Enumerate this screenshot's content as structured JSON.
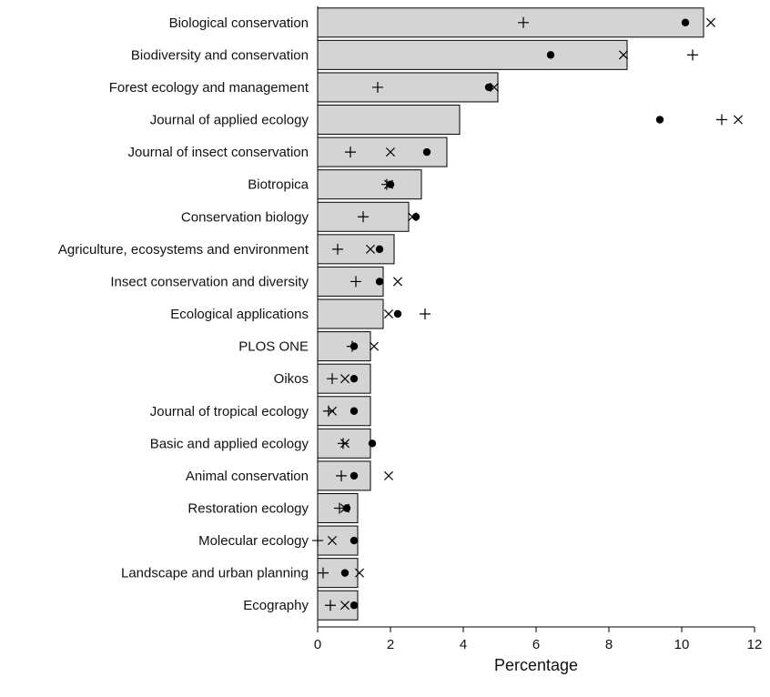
{
  "chart_data": {
    "type": "bar",
    "orientation": "horizontal",
    "xlabel": "Percentage",
    "xlim": [
      0,
      12
    ],
    "xticks": [
      0,
      2,
      4,
      6,
      8,
      10,
      12
    ],
    "categories": [
      "Biological conservation",
      "Biodiversity and conservation",
      "Forest ecology and management",
      "Journal of applied ecology",
      "Journal of insect conservation",
      "Biotropica",
      "Conservation biology",
      "Agriculture, ecosystems and environment",
      "Insect conservation and diversity",
      "Ecological applications",
      "PLOS ONE",
      "Oikos",
      "Journal of tropical ecology",
      "Basic and applied ecology",
      "Animal conservation",
      "Restoration ecology",
      "Molecular ecology",
      "Landscape and urban planning",
      "Ecography"
    ],
    "values": [
      10.6,
      8.5,
      4.95,
      3.9,
      3.55,
      2.85,
      2.5,
      2.1,
      1.8,
      1.8,
      1.45,
      1.45,
      1.45,
      1.45,
      1.45,
      1.1,
      1.1,
      1.1,
      1.1
    ],
    "series": [
      {
        "marker": "dot",
        "values": [
          10.1,
          6.4,
          4.7,
          9.4,
          3.0,
          2.0,
          2.7,
          1.7,
          1.7,
          2.2,
          1.0,
          1.0,
          1.0,
          1.5,
          1.0,
          0.8,
          1.0,
          0.75,
          1.0
        ]
      },
      {
        "marker": "plus",
        "values": [
          5.65,
          10.3,
          1.65,
          11.1,
          0.9,
          1.9,
          1.25,
          0.55,
          1.05,
          2.95,
          0.95,
          0.4,
          0.3,
          0.7,
          0.65,
          0.6,
          0.0,
          0.15,
          0.35
        ]
      },
      {
        "marker": "cross",
        "values": [
          10.8,
          8.4,
          4.85,
          11.55,
          2.0,
          1.95,
          2.6,
          1.45,
          2.2,
          1.95,
          1.55,
          0.75,
          0.4,
          0.75,
          1.95,
          0.75,
          0.4,
          1.15,
          0.75
        ]
      }
    ]
  }
}
